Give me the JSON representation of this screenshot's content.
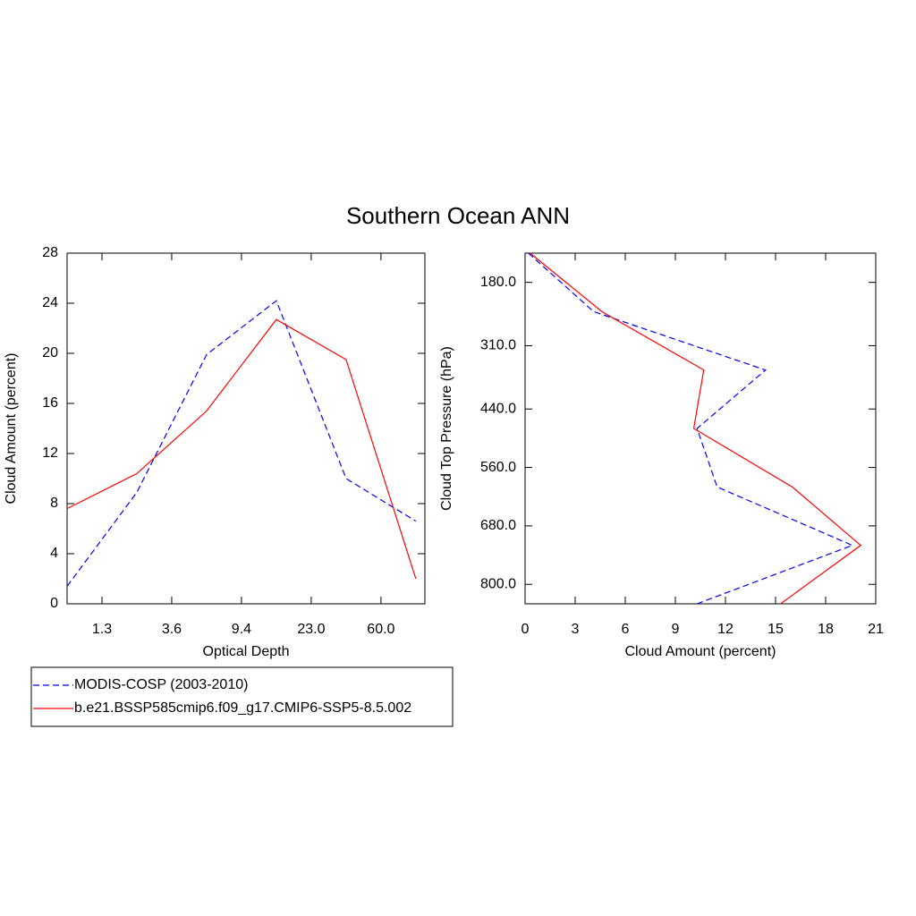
{
  "title": "Southern Ocean ANN",
  "chart_data": [
    {
      "type": "line",
      "x": [
        0,
        1,
        2,
        3,
        4,
        5
      ],
      "xlim": [
        0,
        5.13
      ],
      "xticks": [
        {
          "value": 0.5,
          "label": "1.3"
        },
        {
          "value": 1.5,
          "label": "3.6"
        },
        {
          "value": 2.5,
          "label": "9.4"
        },
        {
          "value": 3.5,
          "label": "23.0"
        },
        {
          "value": 4.5,
          "label": "60.0"
        }
      ],
      "ylim": [
        0,
        28
      ],
      "yticks": [
        0,
        4,
        8,
        12,
        16,
        20,
        24,
        28
      ],
      "xlabel": "Optical Depth",
      "ylabel": "Cloud Amount (percent)",
      "series": [
        {
          "name": "MODIS-COSP (2003-2010)",
          "color": "#0000ff",
          "style": "dashed",
          "values": [
            1.4,
            8.9,
            19.9,
            24.2,
            10.0,
            6.6
          ]
        },
        {
          "name": "b.e21.BSSP585cmip6.f09_g17.CMIP6-SSP5-8.5.002",
          "color": "#ff0000",
          "style": "solid",
          "values": [
            7.6,
            10.4,
            15.4,
            22.7,
            19.5,
            2.0
          ]
        }
      ]
    },
    {
      "type": "line",
      "orientation": "horizontal",
      "y": [
        120,
        240,
        360,
        480,
        600,
        720,
        840
      ],
      "ylim": [
        840,
        120
      ],
      "yticks": [
        {
          "value": 180,
          "label": "180.0"
        },
        {
          "value": 310,
          "label": "310.0"
        },
        {
          "value": 440,
          "label": "440.0"
        },
        {
          "value": 560,
          "label": "560.0"
        },
        {
          "value": 680,
          "label": "680.0"
        },
        {
          "value": 800,
          "label": "800.0"
        }
      ],
      "xlim": [
        0,
        21
      ],
      "xticks": [
        0,
        3,
        6,
        9,
        12,
        15,
        18,
        21
      ],
      "xlabel": "Cloud Amount (percent)",
      "ylabel": "Cloud Top Pressure (hPa)",
      "series": [
        {
          "color": "#0000ff",
          "style": "dashed",
          "values": [
            0.2,
            4.1,
            14.4,
            10.3,
            11.5,
            19.6,
            10.3
          ]
        },
        {
          "color": "#ff0000",
          "style": "solid",
          "values": [
            0.3,
            4.6,
            10.7,
            10.1,
            16.0,
            20.1,
            15.3
          ]
        }
      ]
    }
  ]
}
